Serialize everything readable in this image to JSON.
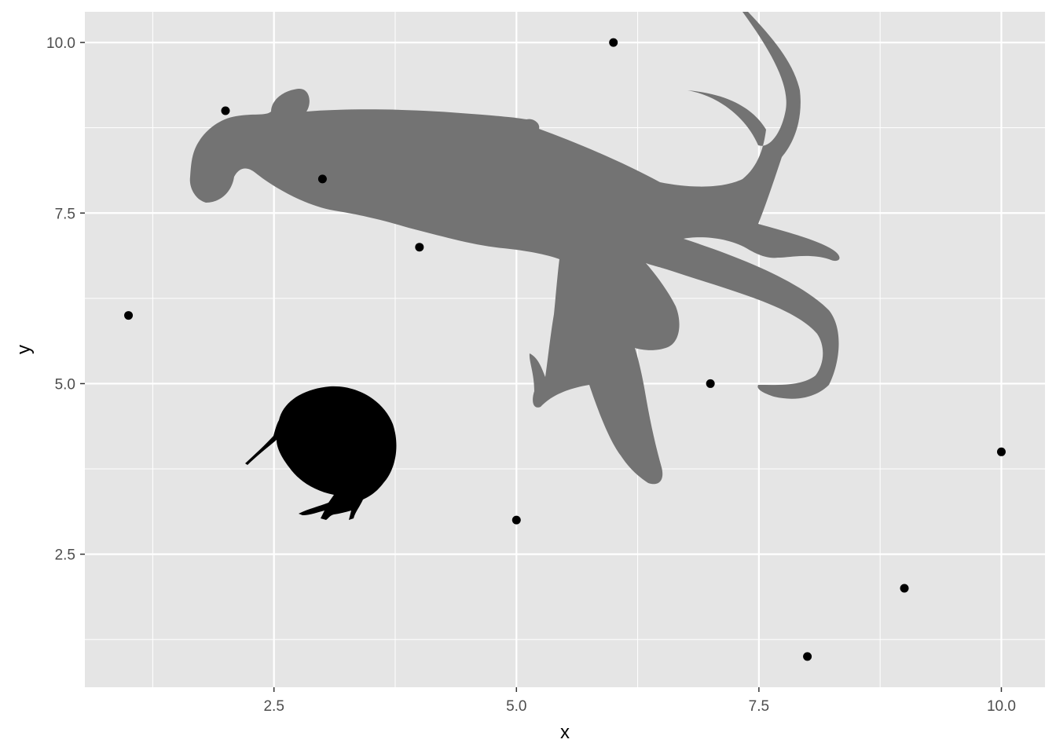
{
  "chart_data": {
    "type": "scatter",
    "title": "",
    "xlabel": "x",
    "ylabel": "y",
    "xlim": [
      0.55,
      10.45
    ],
    "ylim": [
      0.55,
      10.45
    ],
    "x_ticks": [
      2.5,
      5.0,
      7.5,
      10.0
    ],
    "x_tick_labels": [
      "2.5",
      "5.0",
      "7.5",
      "10.0"
    ],
    "y_ticks": [
      2.5,
      5.0,
      7.5,
      10.0
    ],
    "y_tick_labels": [
      "2.5",
      "5.0",
      "7.5",
      "10.0"
    ],
    "grid": true,
    "panel_background": "#e5e5e5",
    "grid_color": "#ffffff",
    "point_color": "#000000",
    "points": [
      {
        "x": 1,
        "y": 6
      },
      {
        "x": 2,
        "y": 9
      },
      {
        "x": 3,
        "y": 8
      },
      {
        "x": 4,
        "y": 7
      },
      {
        "x": 5,
        "y": 3
      },
      {
        "x": 6,
        "y": 10
      },
      {
        "x": 7,
        "y": 5
      },
      {
        "x": 8,
        "y": 1
      },
      {
        "x": 9,
        "y": 2
      },
      {
        "x": 10,
        "y": 4
      }
    ],
    "silhouettes": [
      {
        "name": "squid",
        "color": "#737373"
      },
      {
        "name": "kiwi",
        "color": "#000000"
      }
    ]
  }
}
